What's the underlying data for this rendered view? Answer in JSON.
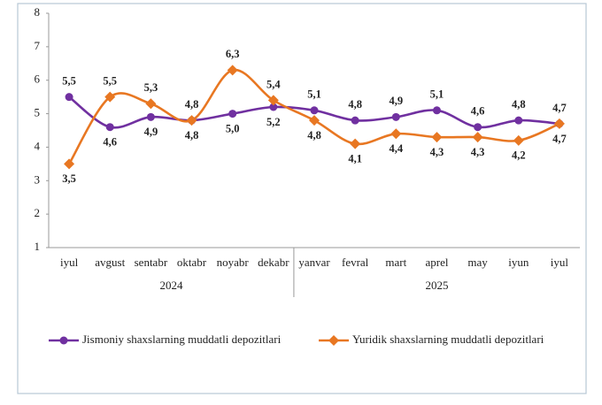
{
  "chart_data": {
    "type": "line",
    "categories": [
      "iyul",
      "avgust",
      "sentabr",
      "oktabr",
      "noyabr",
      "dekabr",
      "yanvar",
      "fevral",
      "mart",
      "aprel",
      "may",
      "iyun",
      "iyul"
    ],
    "groups": [
      {
        "label": "2024",
        "count": 6
      },
      {
        "label": "2025",
        "count": 7
      }
    ],
    "series": [
      {
        "name": "Jismoniy shaxslarning muddatli depozitlari",
        "color": "#7030a0",
        "marker": "circle",
        "values": [
          5.5,
          4.6,
          4.9,
          4.8,
          5.0,
          5.2,
          5.1,
          4.8,
          4.9,
          5.1,
          4.6,
          4.8,
          4.7
        ],
        "value_labels": [
          "5,5",
          "4,6",
          "4,9",
          "4,8",
          "5,0",
          "5,2",
          "5,1",
          "4,8",
          "4,9",
          "5,1",
          "4,6",
          "4,8",
          "4,7"
        ]
      },
      {
        "name": "Yuridik shaxslarning muddatli depozitlari",
        "color": "#e87722",
        "marker": "diamond",
        "values": [
          3.5,
          5.5,
          5.3,
          4.8,
          6.3,
          5.4,
          4.8,
          4.1,
          4.4,
          4.3,
          4.3,
          4.2,
          4.7
        ],
        "value_labels": [
          "3,5",
          "5,5",
          "5,3",
          "4,8",
          "6,3",
          "5,4",
          "4,8",
          "4,1",
          "4,4",
          "4,3",
          "4,3",
          "4,2",
          "4,7"
        ]
      }
    ],
    "ylim": [
      1,
      8
    ],
    "yticks": [
      1,
      2,
      3,
      4,
      5,
      6,
      7,
      8
    ],
    "grid": false,
    "legend": "bottom"
  }
}
